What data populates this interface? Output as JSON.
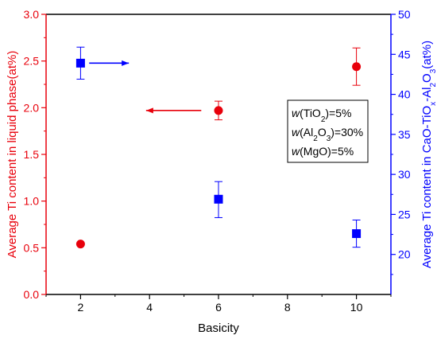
{
  "chart_data": {
    "type": "scatter",
    "x_axis": {
      "label": "Basicity",
      "range": [
        1,
        11
      ],
      "ticks": [
        2,
        4,
        6,
        8,
        10
      ],
      "tick_labels": [
        "2",
        "4",
        "6",
        "8",
        "10"
      ],
      "minor_ticks": [
        1,
        3,
        5,
        7,
        9,
        11
      ]
    },
    "y_left_axis": {
      "label": "Average Ti content in liquid phase(at%)",
      "range": [
        0,
        3
      ],
      "ticks": [
        0,
        0.5,
        1,
        1.5,
        2,
        2.5,
        3
      ],
      "tick_labels": [
        "0.0",
        "0.5",
        "1.0",
        "1.5",
        "2.0",
        "2.5",
        "3.0"
      ],
      "minor_ticks": [
        0.25,
        0.75,
        1.25,
        1.75,
        2.25,
        2.75
      ],
      "color": "#e8000b"
    },
    "y_right_axis": {
      "label_parts": [
        {
          "text": "Average Ti content in CaO-TiO",
          "shift": "none"
        },
        {
          "text": "x",
          "shift": "sub"
        },
        {
          "text": "-Al",
          "shift": "none"
        },
        {
          "text": "2",
          "shift": "sub"
        },
        {
          "text": "O",
          "shift": "none"
        },
        {
          "text": "3",
          "shift": "sub"
        },
        {
          "text": "(at%)",
          "shift": "none"
        }
      ],
      "range": [
        15,
        50
      ],
      "ticks": [
        20,
        25,
        30,
        35,
        40,
        45,
        50
      ],
      "tick_labels": [
        "20",
        "25",
        "30",
        "35",
        "40",
        "45",
        "50"
      ],
      "minor_ticks": [
        17.5,
        22.5,
        27.5,
        32.5,
        37.5,
        42.5,
        47.5
      ],
      "color": "#0000ff"
    },
    "series": [
      {
        "axis": "left",
        "marker": "circle",
        "color": "#e8000b",
        "points": [
          {
            "x": 2,
            "y": 0.54,
            "err": null
          },
          {
            "x": 6,
            "y": 1.97,
            "err": [
              1.87,
              2.07
            ]
          },
          {
            "x": 10,
            "y": 2.44,
            "err": [
              2.24,
              2.64
            ]
          }
        ]
      },
      {
        "axis": "right",
        "marker": "square",
        "color": "#0000ff",
        "points": [
          {
            "x": 2,
            "y": 43.9,
            "err": [
              41.9,
              45.9
            ]
          },
          {
            "x": 6,
            "y": 26.9,
            "err": [
              24.6,
              29.1
            ]
          },
          {
            "x": 10,
            "y": 22.6,
            "err": [
              20.9,
              24.3
            ]
          }
        ]
      }
    ],
    "arrows": [
      {
        "axis": "left",
        "points_to": "left",
        "color": "#e8000b",
        "x_from": 5.5,
        "x_to": 3.9,
        "y": 1.97
      },
      {
        "axis": "right",
        "points_to": "right",
        "color": "#0000ff",
        "x_from": 2.25,
        "x_to": 3.4,
        "y": 43.9
      }
    ],
    "legend": {
      "placement": "right",
      "entries": [
        {
          "parts": [
            {
              "text": "w",
              "italic": true,
              "shift": "none"
            },
            {
              "text": "(TiO",
              "italic": false,
              "shift": "none"
            },
            {
              "text": "2",
              "italic": false,
              "shift": "sub"
            },
            {
              "text": ")=5%",
              "italic": false,
              "shift": "none"
            }
          ]
        },
        {
          "parts": [
            {
              "text": "w",
              "italic": true,
              "shift": "none"
            },
            {
              "text": "(Al",
              "italic": false,
              "shift": "none"
            },
            {
              "text": "2",
              "italic": false,
              "shift": "sub"
            },
            {
              "text": "O",
              "italic": false,
              "shift": "none"
            },
            {
              "text": "3",
              "italic": false,
              "shift": "sub"
            },
            {
              "text": ")=30%",
              "italic": false,
              "shift": "none"
            }
          ]
        },
        {
          "parts": [
            {
              "text": "w",
              "italic": true,
              "shift": "none"
            },
            {
              "text": "(MgO)=5%",
              "italic": false,
              "shift": "none"
            }
          ]
        }
      ]
    }
  }
}
